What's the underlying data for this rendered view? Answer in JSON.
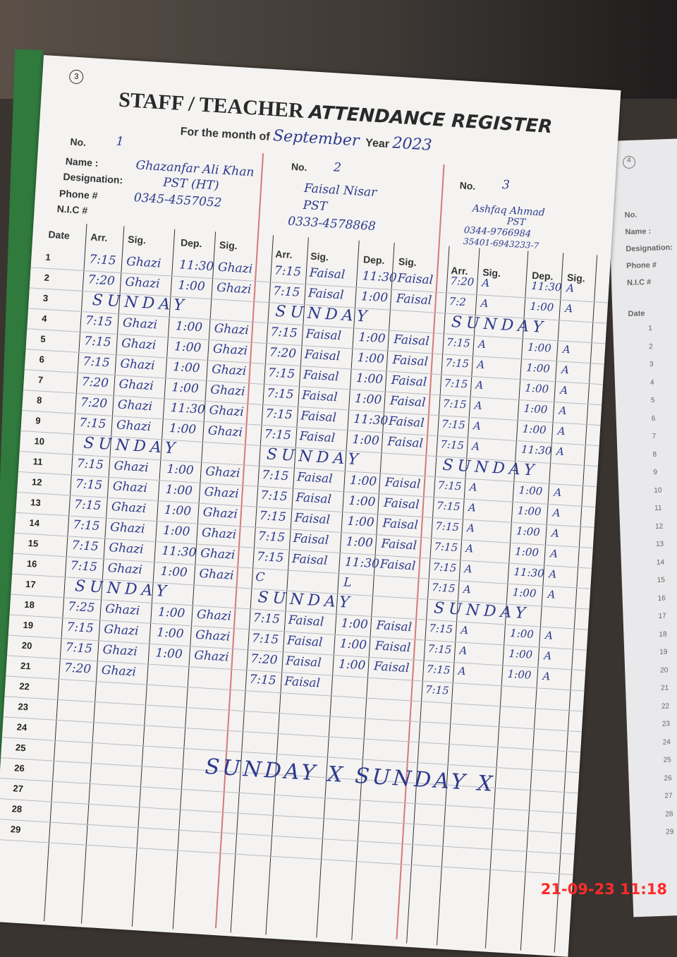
{
  "register": {
    "page_number": "3",
    "title_part1": "STAFF / TEACHER",
    "title_part2": "ATTENDANCE REGISTER",
    "month_label": "For the month of",
    "month_value": "September",
    "year_label": "Year",
    "year_value": "2023",
    "labels": {
      "no": "No.",
      "name": "Name :",
      "designation": "Designation:",
      "phone": "Phone #",
      "nic": "N.I.C #",
      "date": "Date",
      "arr": "Arr.",
      "sig": "Sig.",
      "dep": "Dep."
    }
  },
  "teachers": [
    {
      "no": "1",
      "name": "Ghazanfar Ali Khan",
      "designation": "PST (HT)",
      "phone": "0345-4557052",
      "nic": ""
    },
    {
      "no": "2",
      "name": "Faisal Nisar",
      "designation": "PST",
      "phone": "0333-4578868",
      "nic": ""
    },
    {
      "no": "3",
      "name": "Ashfaq Ahmad",
      "designation": "PST",
      "phone": "0344-9766984",
      "nic": "35401-6943233-7"
    }
  ],
  "rows": [
    {
      "date": "1",
      "t1": [
        "7:15",
        "Ghazi",
        "11:30",
        "Ghazi"
      ],
      "t2": [
        "7:15",
        "Faisal",
        "11:30",
        "Faisal"
      ],
      "t3": [
        "7:20",
        "A",
        "11:30",
        "A"
      ]
    },
    {
      "date": "2",
      "t1": [
        "7:20",
        "Ghazi",
        "1:00",
        "Ghazi"
      ],
      "t2": [
        "7:15",
        "Faisal",
        "1:00",
        "Faisal"
      ],
      "t3": [
        "7:2",
        "A",
        "1:00",
        "A"
      ]
    },
    {
      "date": "3",
      "special": "SUNDAY"
    },
    {
      "date": "4",
      "t1": [
        "7:15",
        "Ghazi",
        "1:00",
        "Ghazi"
      ],
      "t2": [
        "7:15",
        "Faisal",
        "1:00",
        "Faisal"
      ],
      "t3": [
        "7:15",
        "A",
        "1:00",
        "A"
      ]
    },
    {
      "date": "5",
      "t1": [
        "7:15",
        "Ghazi",
        "1:00",
        "Ghazi"
      ],
      "t2": [
        "7:20",
        "Faisal",
        "1:00",
        "Faisal"
      ],
      "t3": [
        "7:15",
        "A",
        "1:00",
        "A"
      ]
    },
    {
      "date": "6",
      "t1": [
        "7:15",
        "Ghazi",
        "1:00",
        "Ghazi"
      ],
      "t2": [
        "7:15",
        "Faisal",
        "1:00",
        "Faisal"
      ],
      "t3": [
        "7:15",
        "A",
        "1:00",
        "A"
      ]
    },
    {
      "date": "7",
      "t1": [
        "7:20",
        "Ghazi",
        "1:00",
        "Ghazi"
      ],
      "t2": [
        "7:15",
        "Faisal",
        "1:00",
        "Faisal"
      ],
      "t3": [
        "7:15",
        "A",
        "1:00",
        "A"
      ]
    },
    {
      "date": "8",
      "t1": [
        "7:20",
        "Ghazi",
        "11:30",
        "Ghazi"
      ],
      "t2": [
        "7:15",
        "Faisal",
        "11:30",
        "Faisal"
      ],
      "t3": [
        "7:15",
        "A",
        "1:00",
        "A"
      ]
    },
    {
      "date": "9",
      "t1": [
        "7:15",
        "Ghazi",
        "1:00",
        "Ghazi"
      ],
      "t2": [
        "7:15",
        "Faisal",
        "1:00",
        "Faisal"
      ],
      "t3": [
        "7:15",
        "A",
        "11:30",
        "A"
      ]
    },
    {
      "date": "10",
      "special": "SUNDAY"
    },
    {
      "date": "11",
      "t1": [
        "7:15",
        "Ghazi",
        "1:00",
        "Ghazi"
      ],
      "t2": [
        "7:15",
        "Faisal",
        "1:00",
        "Faisal"
      ],
      "t3": [
        "7:15",
        "A",
        "1:00",
        "A"
      ]
    },
    {
      "date": "12",
      "t1": [
        "7:15",
        "Ghazi",
        "1:00",
        "Ghazi"
      ],
      "t2": [
        "7:15",
        "Faisal",
        "1:00",
        "Faisal"
      ],
      "t3": [
        "7:15",
        "A",
        "1:00",
        "A"
      ]
    },
    {
      "date": "13",
      "t1": [
        "7:15",
        "Ghazi",
        "1:00",
        "Ghazi"
      ],
      "t2": [
        "7:15",
        "Faisal",
        "1:00",
        "Faisal"
      ],
      "t3": [
        "7:15",
        "A",
        "1:00",
        "A"
      ]
    },
    {
      "date": "14",
      "t1": [
        "7:15",
        "Ghazi",
        "1:00",
        "Ghazi"
      ],
      "t2": [
        "7:15",
        "Faisal",
        "1:00",
        "Faisal"
      ],
      "t3": [
        "7:15",
        "A",
        "1:00",
        "A"
      ]
    },
    {
      "date": "15",
      "t1": [
        "7:15",
        "Ghazi",
        "11:30",
        "Ghazi"
      ],
      "t2": [
        "7:15",
        "Faisal",
        "11:30",
        "Faisal"
      ],
      "t3": [
        "7:15",
        "A",
        "11:30",
        "A"
      ]
    },
    {
      "date": "16",
      "t1": [
        "7:15",
        "Ghazi",
        "1:00",
        "Ghazi"
      ],
      "t2": [
        "C",
        "",
        "L",
        ""
      ],
      "t3": [
        "7:15",
        "A",
        "1:00",
        "A"
      ]
    },
    {
      "date": "17",
      "special": "SUNDAY"
    },
    {
      "date": "18",
      "t1": [
        "7:25",
        "Ghazi",
        "1:00",
        "Ghazi"
      ],
      "t2": [
        "7:15",
        "Faisal",
        "1:00",
        "Faisal"
      ],
      "t3": [
        "7:15",
        "A",
        "1:00",
        "A"
      ]
    },
    {
      "date": "19",
      "t1": [
        "7:15",
        "Ghazi",
        "1:00",
        "Ghazi"
      ],
      "t2": [
        "7:15",
        "Faisal",
        "1:00",
        "Faisal"
      ],
      "t3": [
        "7:15",
        "A",
        "1:00",
        "A"
      ]
    },
    {
      "date": "20",
      "t1": [
        "7:15",
        "Ghazi",
        "1:00",
        "Ghazi"
      ],
      "t2": [
        "7:20",
        "Faisal",
        "1:00",
        "Faisal"
      ],
      "t3": [
        "7:15",
        "A",
        "1:00",
        "A"
      ]
    },
    {
      "date": "21",
      "t1": [
        "7:20",
        "Ghazi",
        "",
        ""
      ],
      "t2": [
        "7:15",
        "Faisal",
        "",
        ""
      ],
      "t3": [
        "7:15",
        "",
        "",
        ""
      ]
    },
    {
      "date": "22"
    },
    {
      "date": "23"
    },
    {
      "date": "24"
    },
    {
      "date": "25"
    },
    {
      "date": "26"
    },
    {
      "date": "27"
    },
    {
      "date": "28"
    },
    {
      "date": "29"
    }
  ],
  "bottom_note": "SUNDAY X SUNDAY X",
  "right_page": {
    "page_number": "4",
    "labels": [
      "No.",
      "Name :",
      "Designation:",
      "Phone #",
      "N.I.C #",
      "Date"
    ]
  },
  "camera_timestamp": "21-09-23  11:18",
  "colors": {
    "ink": "#2d3a8c",
    "paper": "#f4f3f1",
    "margin_rule": "#d47a7a",
    "timestamp": "#ff2a2a"
  }
}
